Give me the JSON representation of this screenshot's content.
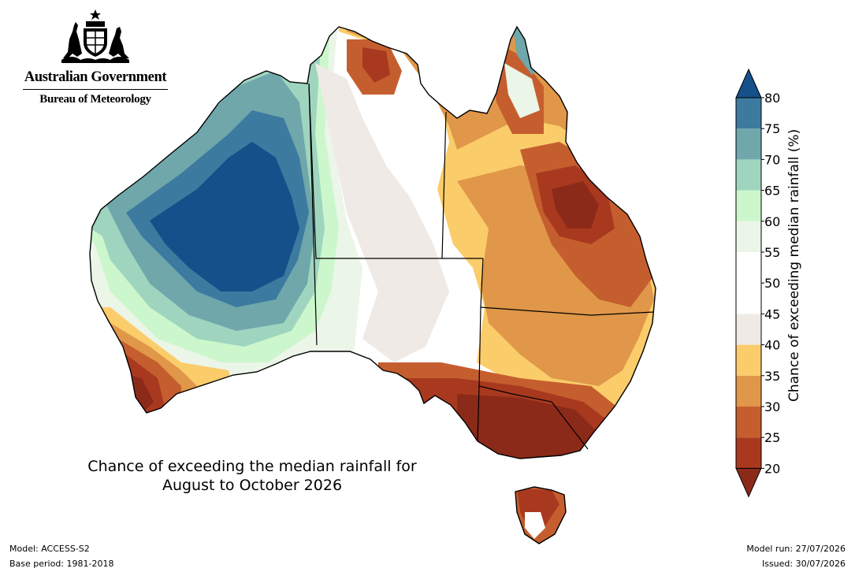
{
  "branding": {
    "government": "Australian Government",
    "agency": "Bureau of Meteorology",
    "emblem_icon": "coat-of-arms-icon"
  },
  "map_title": {
    "line1": "Chance of exceeding the median rainfall for",
    "line2": "August to October 2026"
  },
  "colorbar": {
    "label": "Chance of exceeding median rainfall (%)",
    "ticks": [
      "20",
      "25",
      "30",
      "35",
      "40",
      "45",
      "50",
      "55",
      "60",
      "65",
      "70",
      "75",
      "80"
    ],
    "bins": [
      {
        "range": "<20",
        "color": "#8c2a1a"
      },
      {
        "range": "20-25",
        "color": "#a8391f"
      },
      {
        "range": "25-30",
        "color": "#c55e2e"
      },
      {
        "range": "30-35",
        "color": "#e09749"
      },
      {
        "range": "35-40",
        "color": "#fbcc6a"
      },
      {
        "range": "40-45",
        "color": "#efeae6"
      },
      {
        "range": "45-50",
        "color": "#ffffff"
      },
      {
        "range": "50-55",
        "color": "#ffffff"
      },
      {
        "range": "55-60",
        "color": "#ebf5e8"
      },
      {
        "range": "60-65",
        "color": "#ccf7cc"
      },
      {
        "range": "65-70",
        "color": "#9fd5bf"
      },
      {
        "range": "70-75",
        "color": "#6fa7ab"
      },
      {
        "range": "75-80",
        "color": "#3d7aa0"
      },
      {
        "range": ">80",
        "color": "#15508a"
      }
    ]
  },
  "footer": {
    "model": "Model: ACCESS-S2",
    "base_period": "Base period: 1981-2018",
    "model_run": "Model run: 27/07/2026",
    "issued": "Issued: 30/07/2026"
  }
}
